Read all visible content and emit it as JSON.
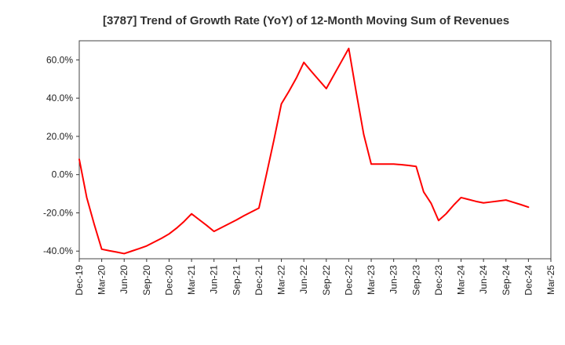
{
  "chart_data": {
    "type": "line",
    "title": "[3787]  Trend of Growth Rate (YoY) of 12-Month Moving Sum of Revenues",
    "xlabel": "",
    "ylabel": "",
    "x_tick_labels": [
      "Dec-19",
      "Mar-20",
      "Jun-20",
      "Sep-20",
      "Dec-20",
      "Mar-21",
      "Jun-21",
      "Sep-21",
      "Dec-21",
      "Mar-22",
      "Jun-22",
      "Sep-22",
      "Dec-22",
      "Mar-23",
      "Jun-23",
      "Sep-23",
      "Dec-23",
      "Mar-24",
      "Jun-24",
      "Sep-24",
      "Dec-24",
      "Mar-25"
    ],
    "y_ticks": [
      -40,
      -20,
      0,
      20,
      40,
      60
    ],
    "y_tick_labels": [
      "-40.0%",
      "-20.0%",
      "0.0%",
      "20.0%",
      "40.0%",
      "60.0%"
    ],
    "ylim": [
      -44,
      70
    ],
    "x_range": [
      0,
      63
    ],
    "grid": true,
    "legend": "none",
    "series": [
      {
        "color": "#ff0000",
        "x": [
          0,
          1,
          2,
          3,
          4,
          5,
          6,
          7,
          8,
          9,
          10,
          11,
          12,
          13,
          14,
          15,
          16,
          17,
          18,
          19,
          20,
          21,
          22,
          23,
          24,
          25,
          26,
          27,
          28,
          29,
          30,
          31,
          32,
          33,
          34,
          35,
          36,
          37,
          38,
          39,
          40,
          41,
          42,
          43,
          44,
          45,
          46,
          47,
          48,
          49,
          50,
          51,
          52,
          53,
          54,
          55,
          56,
          57,
          58,
          59,
          60
        ],
        "values": [
          8,
          -12,
          -26,
          -39,
          -39.8,
          -40.5,
          -41.3,
          -40,
          -38.7,
          -37.3,
          -35.3,
          -33.3,
          -31,
          -28,
          -24.5,
          -20.5,
          -23.5,
          -26.5,
          -29.7,
          -27.7,
          -25.7,
          -23.7,
          -21.5,
          -19.5,
          -17.5,
          0,
          18,
          37,
          43.5,
          50.5,
          58.7,
          54,
          49.5,
          45,
          52,
          59,
          66,
          43,
          21,
          5.5,
          5.5,
          5.5,
          5.5,
          5.2,
          4.8,
          4.3,
          -9,
          -15,
          -24,
          -20.5,
          -16,
          -12,
          -13,
          -14,
          -14.8,
          -14.3,
          -13.8,
          -13.3,
          -14.5,
          -15.7,
          -17
        ]
      }
    ]
  }
}
